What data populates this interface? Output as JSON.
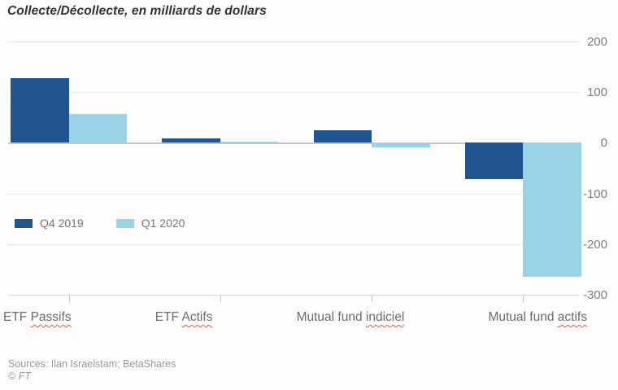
{
  "title": "Collecte/Décollecte, en milliards de dollars",
  "footer": {
    "sources": "Sources: Ilan Israelstam; BetaShares",
    "copyright": "© FT"
  },
  "chart_data": {
    "type": "bar",
    "title": "Collecte/Décollecte, en milliards de dollars",
    "categories": [
      "ETF Passifs",
      "ETF Actifs",
      "Mutual fund indiciel",
      "Mutual fund actifs"
    ],
    "category_label_parts": [
      {
        "prefix": "ETF",
        "underlined": "Passifs"
      },
      {
        "prefix": "ETF",
        "underlined": "Actifs"
      },
      {
        "prefix": "Mutual fund",
        "underlined": "indiciel"
      },
      {
        "prefix": "Mutual fund",
        "underlined": "actifs"
      }
    ],
    "series": [
      {
        "name": "Q4 2019",
        "color": "#20568D",
        "values": [
          127,
          8,
          24,
          -71
        ]
      },
      {
        "name": "Q1 2020",
        "color": "#9AD3E5",
        "values": [
          57,
          3,
          -9,
          -265
        ]
      }
    ],
    "xlabel": "",
    "ylabel": "milliards de dollars",
    "ylim": [
      -300,
      200
    ],
    "yticks": [
      200,
      100,
      0,
      -100,
      -200,
      -300
    ],
    "grid": true,
    "legend_position": "inside-left"
  }
}
